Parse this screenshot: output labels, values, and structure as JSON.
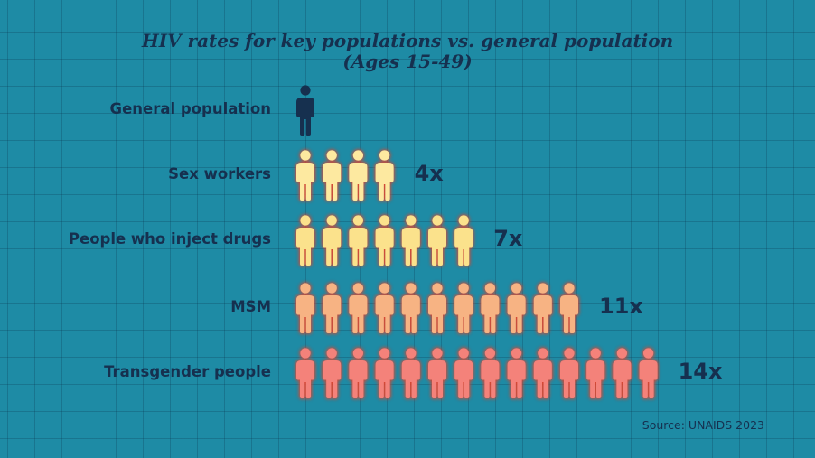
{
  "chart_data": {
    "type": "pictogram",
    "title_line1": "HIV rates for key populations vs. general population",
    "title_line2": "(Ages 15-49)",
    "rows": [
      {
        "label": "General population",
        "value": 1,
        "multiplier_label": "",
        "color": "#16304f",
        "glow": false
      },
      {
        "label": "Sex workers",
        "value": 4,
        "multiplier_label": "4x",
        "color": "#fde9a0",
        "glow": true
      },
      {
        "label": "People who inject drugs",
        "value": 7,
        "multiplier_label": "7x",
        "color": "#fbe28c",
        "glow": true
      },
      {
        "label": "MSM",
        "value": 11,
        "multiplier_label": "11x",
        "color": "#f7b383",
        "glow": true
      },
      {
        "label": "Transgender people",
        "value": 14,
        "multiplier_label": "14x",
        "color": "#f4827a",
        "glow": true
      }
    ],
    "icon": "person-icon",
    "source": "Source: UNAIDS 2023"
  }
}
